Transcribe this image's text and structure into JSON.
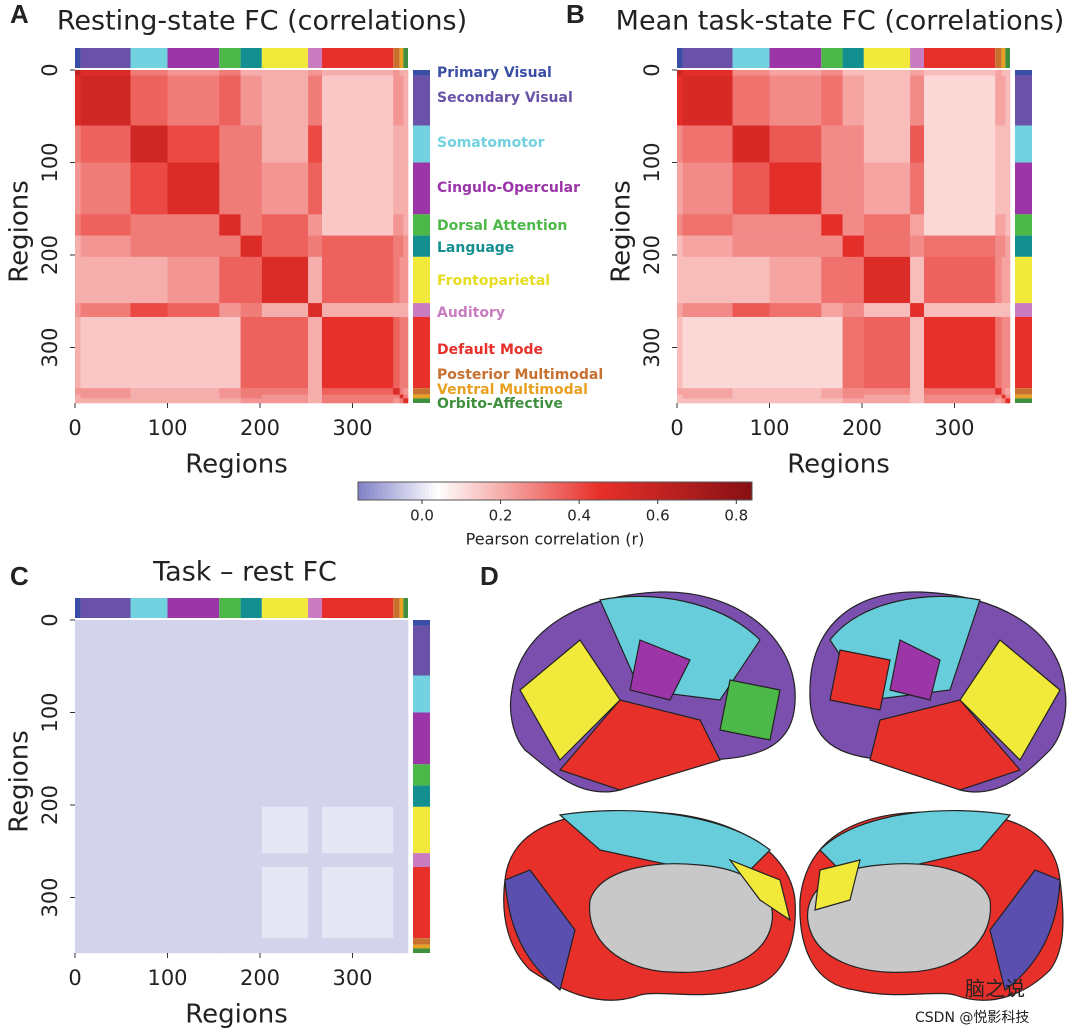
{
  "panel_letters": [
    "A",
    "B",
    "C",
    "D"
  ],
  "networks": {
    "names": [
      "Primary Visual",
      "Secondary Visual",
      "Somatomotor",
      "Cingulo-Opercular",
      "Dorsal Attention",
      "Language",
      "Frontoparietal",
      "Auditory",
      "Default Mode",
      "Posterior Multimodal",
      "Ventral Multimodal",
      "Orbito-Affective"
    ],
    "colors": [
      "#3a4ea6",
      "#6a52a8",
      "#72d2e0",
      "#9b35a8",
      "#4cb848",
      "#148f90",
      "#f2ea3a",
      "#c97cc0",
      "#e8302a",
      "#c87030",
      "#e8a020",
      "#3f8f3f"
    ],
    "bounds": [
      0,
      6,
      60,
      100,
      156,
      179,
      202,
      252,
      267,
      344,
      351,
      355,
      360
    ]
  },
  "colorbar": {
    "label": "Pearson correlation (r)",
    "lim": [
      -0.163,
      0.84
    ],
    "ticks": [
      {
        "value": 0,
        "label": "0.0"
      },
      0.2,
      0.4,
      0.6,
      0.8
    ]
  },
  "watermark": [
    "脑之说",
    "CSDN @悦影科技"
  ],
  "chart_data": [
    {
      "type": "heatmap",
      "title": "Resting-state FC (correlations)",
      "xlabel": "Regions",
      "ylabel": "Regions",
      "xlim": [
        0,
        360
      ],
      "ylim": [
        0,
        360
      ],
      "xticks": [
        0,
        100,
        200,
        300
      ],
      "yticks": [
        0,
        100,
        200,
        300
      ],
      "values": [
        [
          0.6,
          0.5,
          0.3,
          0.25,
          0.3,
          0.2,
          0.2,
          0.25,
          0.2,
          0.25,
          0.2,
          0.2
        ],
        [
          0.5,
          0.55,
          0.35,
          0.3,
          0.35,
          0.25,
          0.2,
          0.3,
          0.15,
          0.25,
          0.25,
          0.2
        ],
        [
          0.3,
          0.35,
          0.55,
          0.4,
          0.3,
          0.3,
          0.2,
          0.4,
          0.15,
          0.2,
          0.2,
          0.2
        ],
        [
          0.25,
          0.3,
          0.4,
          0.5,
          0.3,
          0.3,
          0.25,
          0.35,
          0.15,
          0.2,
          0.2,
          0.2
        ],
        [
          0.3,
          0.35,
          0.3,
          0.3,
          0.5,
          0.3,
          0.35,
          0.25,
          0.15,
          0.25,
          0.25,
          0.2
        ],
        [
          0.2,
          0.25,
          0.3,
          0.3,
          0.3,
          0.5,
          0.35,
          0.3,
          0.35,
          0.3,
          0.3,
          0.25
        ],
        [
          0.2,
          0.2,
          0.2,
          0.25,
          0.35,
          0.35,
          0.5,
          0.2,
          0.35,
          0.3,
          0.25,
          0.25
        ],
        [
          0.25,
          0.3,
          0.4,
          0.35,
          0.25,
          0.3,
          0.2,
          0.5,
          0.2,
          0.2,
          0.2,
          0.2
        ],
        [
          0.2,
          0.15,
          0.15,
          0.15,
          0.15,
          0.35,
          0.35,
          0.2,
          0.45,
          0.35,
          0.3,
          0.3
        ],
        [
          0.25,
          0.25,
          0.2,
          0.2,
          0.25,
          0.3,
          0.3,
          0.2,
          0.35,
          0.5,
          0.3,
          0.25
        ],
        [
          0.2,
          0.25,
          0.2,
          0.2,
          0.25,
          0.3,
          0.25,
          0.2,
          0.3,
          0.3,
          0.5,
          0.3
        ],
        [
          0.2,
          0.2,
          0.2,
          0.2,
          0.2,
          0.25,
          0.25,
          0.2,
          0.3,
          0.25,
          0.3,
          0.5
        ]
      ]
    },
    {
      "type": "heatmap",
      "title": "Mean task-state FC (correlations)",
      "xlabel": "Regions",
      "ylabel": "Regions",
      "xlim": [
        0,
        360
      ],
      "ylim": [
        0,
        360
      ],
      "xticks": [
        0,
        100,
        200,
        300
      ],
      "yticks": [
        0,
        100,
        200,
        300
      ],
      "values": [
        [
          0.57,
          0.47,
          0.27,
          0.22,
          0.27,
          0.17,
          0.17,
          0.22,
          0.17,
          0.22,
          0.17,
          0.17
        ],
        [
          0.47,
          0.52,
          0.32,
          0.27,
          0.32,
          0.22,
          0.17,
          0.27,
          0.12,
          0.22,
          0.22,
          0.17
        ],
        [
          0.27,
          0.32,
          0.52,
          0.37,
          0.27,
          0.27,
          0.17,
          0.37,
          0.12,
          0.17,
          0.17,
          0.17
        ],
        [
          0.22,
          0.27,
          0.37,
          0.47,
          0.27,
          0.27,
          0.22,
          0.32,
          0.12,
          0.17,
          0.17,
          0.17
        ],
        [
          0.27,
          0.32,
          0.27,
          0.27,
          0.47,
          0.27,
          0.32,
          0.22,
          0.12,
          0.22,
          0.22,
          0.17
        ],
        [
          0.17,
          0.22,
          0.27,
          0.27,
          0.27,
          0.47,
          0.32,
          0.27,
          0.32,
          0.27,
          0.27,
          0.22
        ],
        [
          0.17,
          0.17,
          0.17,
          0.22,
          0.32,
          0.32,
          0.5,
          0.17,
          0.35,
          0.27,
          0.22,
          0.22
        ],
        [
          0.22,
          0.27,
          0.37,
          0.32,
          0.22,
          0.27,
          0.17,
          0.47,
          0.17,
          0.17,
          0.17,
          0.17
        ],
        [
          0.17,
          0.12,
          0.12,
          0.12,
          0.12,
          0.32,
          0.35,
          0.17,
          0.45,
          0.32,
          0.27,
          0.27
        ],
        [
          0.22,
          0.22,
          0.17,
          0.17,
          0.22,
          0.27,
          0.27,
          0.17,
          0.32,
          0.47,
          0.27,
          0.22
        ],
        [
          0.17,
          0.22,
          0.17,
          0.17,
          0.22,
          0.27,
          0.22,
          0.17,
          0.27,
          0.27,
          0.47,
          0.27
        ],
        [
          0.17,
          0.17,
          0.17,
          0.17,
          0.17,
          0.22,
          0.22,
          0.17,
          0.27,
          0.22,
          0.27,
          0.47
        ]
      ]
    },
    {
      "type": "heatmap",
      "title": "Task – rest FC",
      "xlabel": "Regions",
      "ylabel": "Regions",
      "xlim": [
        0,
        360
      ],
      "ylim": [
        0,
        360
      ],
      "xticks": [
        0,
        100,
        200,
        300
      ],
      "yticks": [
        0,
        100,
        200,
        300
      ],
      "values": [
        [
          -0.03,
          -0.03,
          -0.03,
          -0.03,
          -0.03,
          -0.03,
          -0.03,
          -0.03,
          -0.03,
          -0.03,
          -0.03,
          -0.03
        ],
        [
          -0.03,
          -0.03,
          -0.03,
          -0.03,
          -0.03,
          -0.03,
          -0.03,
          -0.03,
          -0.03,
          -0.03,
          -0.03,
          -0.03
        ],
        [
          -0.03,
          -0.03,
          -0.03,
          -0.03,
          -0.03,
          -0.03,
          -0.03,
          -0.03,
          -0.03,
          -0.03,
          -0.03,
          -0.03
        ],
        [
          -0.03,
          -0.03,
          -0.03,
          -0.03,
          -0.03,
          -0.03,
          -0.03,
          -0.03,
          -0.03,
          -0.03,
          -0.03,
          -0.03
        ],
        [
          -0.03,
          -0.03,
          -0.03,
          -0.03,
          -0.03,
          -0.03,
          -0.03,
          -0.03,
          -0.03,
          -0.03,
          -0.03,
          -0.03
        ],
        [
          -0.03,
          -0.03,
          -0.03,
          -0.03,
          -0.03,
          -0.03,
          -0.03,
          -0.03,
          -0.03,
          -0.03,
          -0.03,
          -0.03
        ],
        [
          -0.03,
          -0.03,
          -0.03,
          -0.03,
          -0.03,
          -0.03,
          0,
          -0.03,
          0,
          -0.03,
          -0.03,
          -0.03
        ],
        [
          -0.03,
          -0.03,
          -0.03,
          -0.03,
          -0.03,
          -0.03,
          -0.03,
          -0.03,
          -0.03,
          -0.03,
          -0.03,
          -0.03
        ],
        [
          -0.03,
          -0.03,
          -0.03,
          -0.03,
          -0.03,
          -0.03,
          0,
          -0.03,
          0,
          -0.03,
          -0.03,
          -0.03
        ],
        [
          -0.03,
          -0.03,
          -0.03,
          -0.03,
          -0.03,
          -0.03,
          -0.03,
          -0.03,
          -0.03,
          -0.03,
          -0.03,
          -0.03
        ],
        [
          -0.03,
          -0.03,
          -0.03,
          -0.03,
          -0.03,
          -0.03,
          -0.03,
          -0.03,
          -0.03,
          -0.03,
          -0.03,
          -0.03
        ],
        [
          -0.03,
          -0.03,
          -0.03,
          -0.03,
          -0.03,
          -0.03,
          -0.03,
          -0.03,
          -0.03,
          -0.03,
          -0.03,
          -0.03
        ]
      ]
    }
  ]
}
